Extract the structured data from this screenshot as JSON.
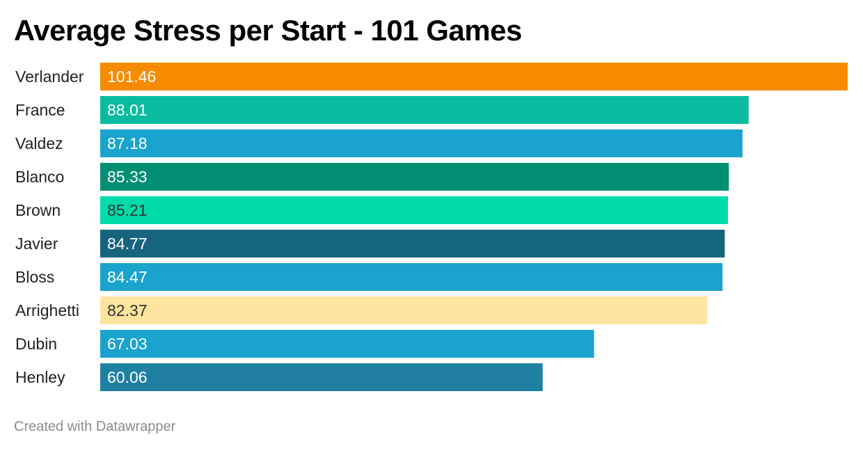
{
  "chart_data": {
    "type": "bar",
    "orientation": "horizontal",
    "title": "Average Stress per Start - 101 Games",
    "categories": [
      "Verlander",
      "France",
      "Valdez",
      "Blanco",
      "Brown",
      "Javier",
      "Bloss",
      "Arrighetti",
      "Dubin",
      "Henley"
    ],
    "values": [
      101.46,
      88.01,
      87.18,
      85.33,
      85.21,
      84.77,
      84.47,
      82.37,
      67.03,
      60.06
    ],
    "value_labels": [
      "101.46",
      "88.01",
      "87.18",
      "85.33",
      "85.21",
      "84.77",
      "84.47",
      "82.37",
      "67.03",
      "60.06"
    ],
    "colors": [
      "#f68b00",
      "#09bca0",
      "#1aa3cd",
      "#008f73",
      "#00dcaa",
      "#16647e",
      "#1aa3cd",
      "#ffe49e",
      "#1aa3cd",
      "#1f80a1"
    ],
    "label_colors": [
      "#ffffff",
      "#ffffff",
      "#ffffff",
      "#ffffff",
      "#333333",
      "#ffffff",
      "#ffffff",
      "#333333",
      "#ffffff",
      "#ffffff"
    ],
    "xlim": [
      0,
      101.46
    ],
    "grid": false,
    "legend": "none"
  },
  "footer": "Created with Datawrapper"
}
